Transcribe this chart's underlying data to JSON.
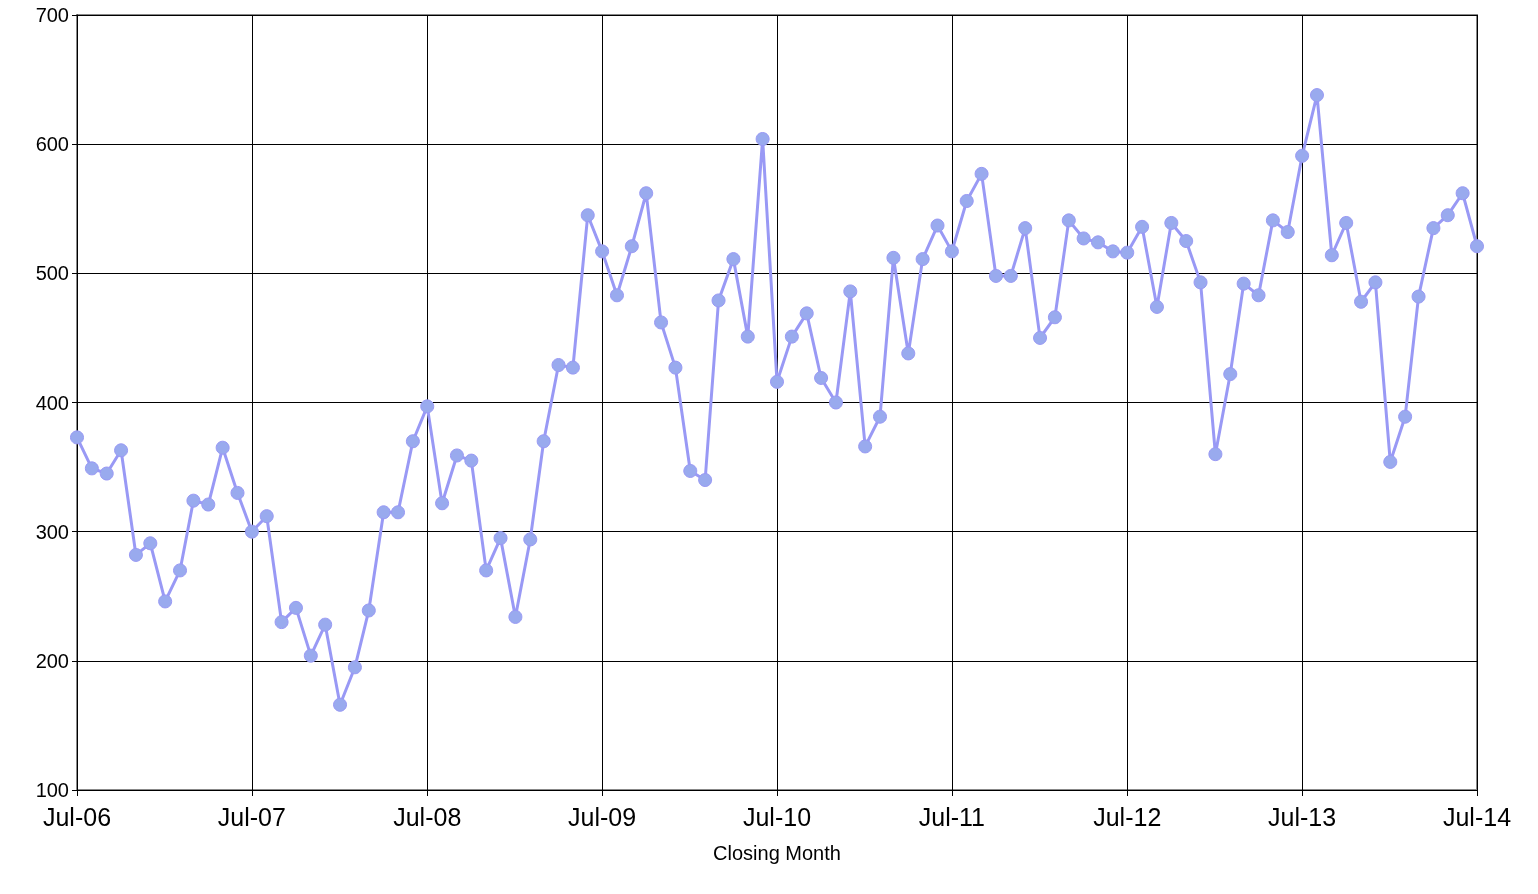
{
  "chart_data": {
    "type": "line",
    "xlabel": "Closing Month",
    "x": [
      "2006-07",
      "2006-08",
      "2006-09",
      "2006-10",
      "2006-11",
      "2006-12",
      "2007-01",
      "2007-02",
      "2007-03",
      "2007-04",
      "2007-05",
      "2007-06",
      "2007-07",
      "2007-08",
      "2007-09",
      "2007-10",
      "2007-11",
      "2007-12",
      "2008-01",
      "2008-02",
      "2008-03",
      "2008-04",
      "2008-05",
      "2008-06",
      "2008-07",
      "2008-08",
      "2008-09",
      "2008-10",
      "2008-11",
      "2008-12",
      "2009-01",
      "2009-02",
      "2009-03",
      "2009-04",
      "2009-05",
      "2009-06",
      "2009-07",
      "2009-08",
      "2009-09",
      "2009-10",
      "2009-11",
      "2009-12",
      "2010-01",
      "2010-02",
      "2010-03",
      "2010-04",
      "2010-05",
      "2010-06",
      "2010-07",
      "2010-08",
      "2010-09",
      "2010-10",
      "2010-11",
      "2010-12",
      "2011-01",
      "2011-02",
      "2011-03",
      "2011-04",
      "2011-05",
      "2011-06",
      "2011-07",
      "2011-08",
      "2011-09",
      "2011-10",
      "2011-11",
      "2011-12",
      "2012-01",
      "2012-02",
      "2012-03",
      "2012-04",
      "2012-05",
      "2012-06",
      "2012-07",
      "2012-08",
      "2012-09",
      "2012-10",
      "2012-11",
      "2012-12",
      "2013-01",
      "2013-02",
      "2013-03",
      "2013-04",
      "2013-05",
      "2013-06",
      "2013-07",
      "2013-08",
      "2013-09",
      "2013-10",
      "2013-11",
      "2013-12",
      "2014-01",
      "2014-02",
      "2014-03",
      "2014-04",
      "2014-05",
      "2014-06",
      "2014-07"
    ],
    "series": [
      {
        "color": "#9999f5",
        "values": [
          373,
          349,
          345,
          363,
          282,
          291,
          246,
          270,
          324,
          321,
          365,
          330,
          300,
          312,
          230,
          241,
          204,
          228,
          166,
          195,
          239,
          315,
          315,
          370,
          397,
          322,
          359,
          355,
          270,
          295,
          234,
          294,
          370,
          429,
          427,
          545,
          517,
          483,
          521,
          562,
          462,
          427,
          347,
          340,
          479,
          511,
          451,
          604,
          416,
          451,
          469,
          419,
          400,
          486,
          366,
          389,
          512,
          438,
          511,
          537,
          517,
          556,
          577,
          498,
          498,
          535,
          450,
          466,
          541,
          527,
          524,
          517,
          516,
          536,
          474,
          539,
          525,
          493,
          360,
          422,
          492,
          483,
          541,
          532,
          591,
          638,
          514,
          539,
          478,
          493,
          354,
          389,
          482,
          535,
          545,
          562,
          521
        ]
      }
    ],
    "xlim": [
      "2006-07",
      "2014-07"
    ],
    "xticks": [
      {
        "value": "2006-07",
        "label": "Jul-06"
      },
      {
        "value": "2007-07",
        "label": "Jul-07"
      },
      {
        "value": "2008-07",
        "label": "Jul-08"
      },
      {
        "value": "2009-07",
        "label": "Jul-09"
      },
      {
        "value": "2010-07",
        "label": "Jul-10"
      },
      {
        "value": "2011-07",
        "label": "Jul-11"
      },
      {
        "value": "2012-07",
        "label": "Jul-12"
      },
      {
        "value": "2013-07",
        "label": "Jul-13"
      },
      {
        "value": "2014-07",
        "label": "Jul-14"
      }
    ],
    "ylim": [
      100,
      700
    ],
    "yticks": [
      100,
      200,
      300,
      400,
      500,
      600,
      700
    ],
    "grid": true,
    "marker": "circle",
    "line_style": "solid"
  }
}
